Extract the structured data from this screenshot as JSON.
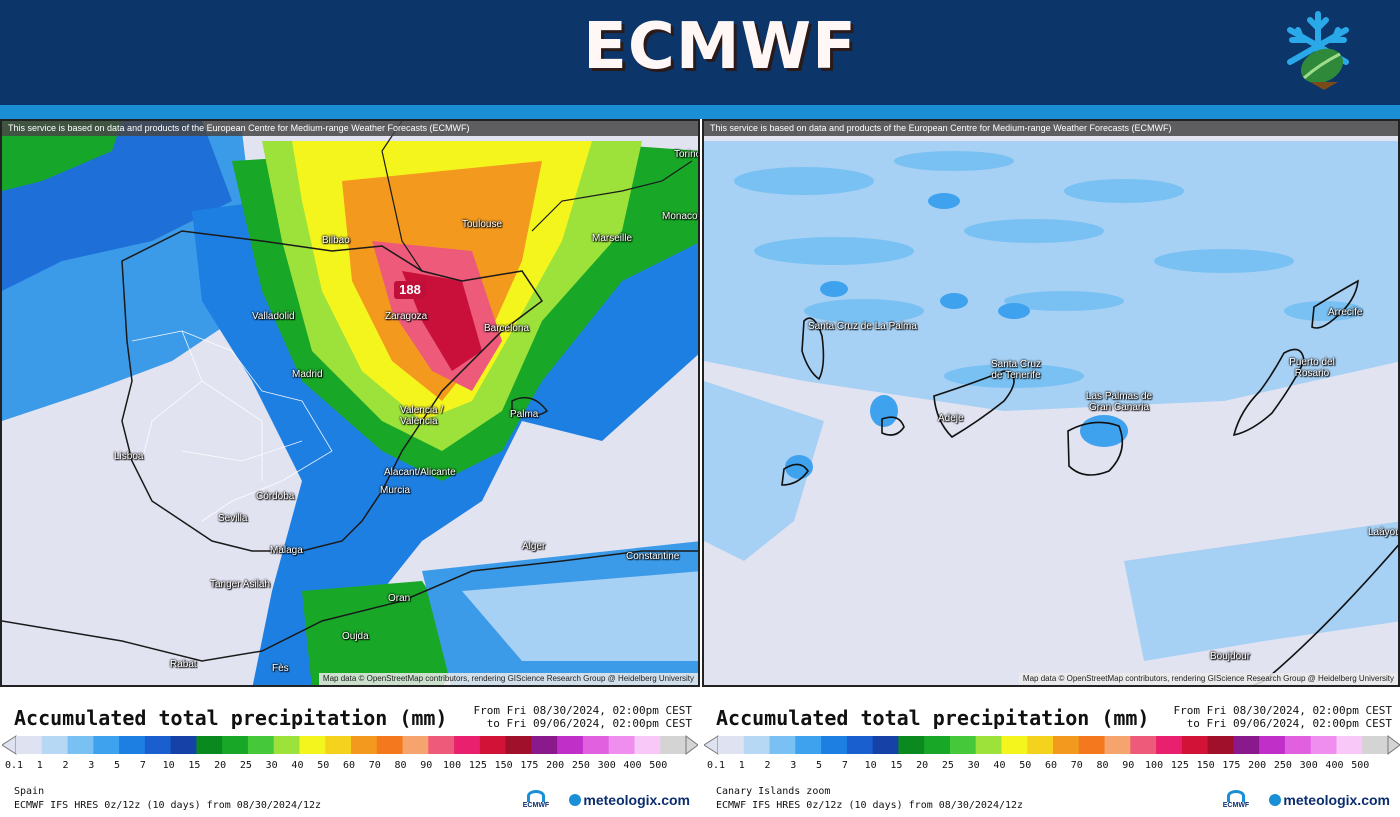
{
  "header": {
    "title": "ECMWF"
  },
  "service_note": "This service is based on data and products of the European Centre for Medium-range Weather Forecasts (ECMWF)",
  "attribution": "Map data © OpenStreetMap contributors, rendering GIScience Research Group @ Heidelberg University",
  "left_map": {
    "max_value": "188",
    "cities": [
      "Bilbao",
      "Toulouse",
      "Marseille",
      "Monaco",
      "Torino",
      "Valladolid",
      "Zaragoza",
      "Barcelona",
      "Madrid",
      "Valencia / València",
      "Palma",
      "Lisboa",
      "Alacant/Alicante",
      "Murcia",
      "Córdoba",
      "Sevilla",
      "Málaga",
      "Tanger Asilah",
      "Alger",
      "Constantine",
      "Oran",
      "Oujda",
      "Rabat",
      "Fès"
    ]
  },
  "right_map": {
    "cities": [
      "Santa Cruz de La Palma",
      "Santa Cruz de Tenerife",
      "Las Palmas de Gran Canaria",
      "Adeje",
      "Arrecife",
      "Puerto del Rosario",
      "Boujdour",
      "Laâyoune"
    ]
  },
  "legend": {
    "title": "Accumulated total precipitation (mm)",
    "date_from": "From Fri 08/30/2024, 02:00pm CEST",
    "date_to": "to Fri 09/06/2024, 02:00pm CEST",
    "ticks": [
      "0.1",
      "1",
      "2",
      "3",
      "5",
      "7",
      "10",
      "15",
      "20",
      "25",
      "30",
      "40",
      "50",
      "60",
      "70",
      "80",
      "90",
      "100",
      "125",
      "150",
      "175",
      "200",
      "250",
      "300",
      "400",
      "500"
    ],
    "colors": [
      "#dfe2f1",
      "#b7d8f5",
      "#79c1f3",
      "#3fa2ee",
      "#1e7fe2",
      "#1a5fd0",
      "#1642a8",
      "#0a8a1e",
      "#18a726",
      "#45c93a",
      "#9ce23a",
      "#f5f51e",
      "#f5d21e",
      "#f39a1e",
      "#f3781e",
      "#f5a46e",
      "#ee5a7a",
      "#e9206e",
      "#d21236",
      "#a0102a",
      "#8a1a8c",
      "#c030c8",
      "#e060e0",
      "#f08ef0",
      "#f8c8f8",
      "#d4d4d4"
    ],
    "model": "ECMWF IFS HRES 0z/12z (10 days) from 08/30/2024/12z",
    "brand": "meteologix.com",
    "ecmwf_small": "ECMWF"
  },
  "legend_left": {
    "region": "Spain"
  },
  "legend_right": {
    "region": "Canary Islands zoom"
  }
}
